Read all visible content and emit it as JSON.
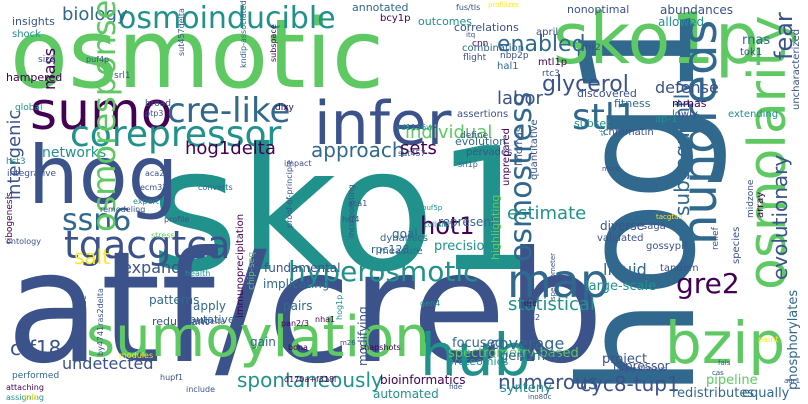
{
  "cloud": {
    "words": [
      {
        "text": "sko1",
        "color": "#21918c"
      },
      {
        "text": "atf/creb",
        "color": "#3b528b"
      },
      {
        "text": "hog1",
        "color": "#31688e"
      },
      {
        "text": "osmotic",
        "color": "#5ec962"
      },
      {
        "text": "sko1p",
        "color": "#5ec962"
      },
      {
        "text": "hog",
        "color": "#3b528b"
      },
      {
        "text": "sumoylation",
        "color": "#5ec962"
      },
      {
        "text": "osmolarity",
        "color": "#5ec962"
      },
      {
        "text": "bzip",
        "color": "#5ec962"
      },
      {
        "text": "hundreds",
        "color": "#31688e"
      },
      {
        "text": "infer",
        "color": "#3b528b"
      },
      {
        "text": "sumo",
        "color": "#440154"
      },
      {
        "text": "hub",
        "color": "#21918c"
      },
      {
        "text": "map",
        "color": "#31688e"
      },
      {
        "text": "tgacgtca",
        "color": "#3b528b"
      },
      {
        "text": "corepressor",
        "color": "#21918c"
      },
      {
        "text": "osmoinducible",
        "color": "#21918c"
      },
      {
        "text": "cre-like",
        "color": "#31688e"
      },
      {
        "text": "stl1",
        "color": "#31688e"
      },
      {
        "text": "ssn6",
        "color": "#31688e"
      },
      {
        "text": "hyperosmotic",
        "color": "#21918c"
      },
      {
        "text": "osmostress",
        "color": "#31688e"
      },
      {
        "text": "gre2",
        "color": "#440154"
      },
      {
        "text": "evolutionary",
        "color": "#3b528b"
      },
      {
        "text": "subsequently",
        "color": "#31688e"
      },
      {
        "text": "fear",
        "color": "#3b528b"
      },
      {
        "text": "glycerol",
        "color": "#3b528b"
      },
      {
        "text": "enabled",
        "color": "#31688e"
      },
      {
        "text": "defense",
        "color": "#3b528b"
      },
      {
        "text": "ctf18",
        "color": "#3b528b"
      },
      {
        "text": "spontaneously",
        "color": "#21918c"
      },
      {
        "text": "numerous",
        "color": "#3b528b"
      },
      {
        "text": "cyc8-tup1",
        "color": "#3b528b"
      },
      {
        "text": "coverage",
        "color": "#31688e"
      },
      {
        "text": "undetected",
        "color": "#3b528b"
      },
      {
        "text": "hot1",
        "color": "#440154"
      },
      {
        "text": "salt",
        "color": "#fde725"
      },
      {
        "text": "expand",
        "color": "#3b528b"
      },
      {
        "text": "labor",
        "color": "#3b528b"
      },
      {
        "text": "biology",
        "color": "#31688e"
      },
      {
        "text": "individual",
        "color": "#5ec962"
      },
      {
        "text": "approach",
        "color": "#31688e"
      },
      {
        "text": "hog1delta",
        "color": "#440154"
      },
      {
        "text": "sets",
        "color": "#440154"
      },
      {
        "text": "estimate",
        "color": "#21918c"
      },
      {
        "text": "statistical",
        "color": "#21918c"
      },
      {
        "text": "intergenic",
        "color": "#3b528b"
      },
      {
        "text": "mass",
        "color": "#440154"
      },
      {
        "text": "networks",
        "color": "#21918c"
      },
      {
        "text": "osmoresponse",
        "color": "#5ec962"
      },
      {
        "text": "liquid",
        "color": "#31688e"
      },
      {
        "text": "pipeline",
        "color": "#5ec962"
      },
      {
        "text": "spectrometry-based",
        "color": "#5ec962"
      },
      {
        "text": "genomes",
        "color": "#31688e"
      },
      {
        "text": "focused",
        "color": "#31688e"
      },
      {
        "text": "project",
        "color": "#3b528b"
      },
      {
        "text": "large-scale",
        "color": "#21918c"
      },
      {
        "text": "phosphorylates",
        "color": "#31688e"
      },
      {
        "text": "repressor",
        "color": "#3b528b"
      },
      {
        "text": "redistributes",
        "color": "#31688e"
      },
      {
        "text": "equally",
        "color": "#31688e"
      },
      {
        "text": "synteny",
        "color": "#21918c"
      },
      {
        "text": "automated",
        "color": "#21918c"
      },
      {
        "text": "bioinformatics",
        "color": "#440154"
      },
      {
        "text": "proteomics",
        "color": "#21918c"
      },
      {
        "text": "modifying",
        "color": "#3b528b"
      },
      {
        "text": "fundamental",
        "color": "#3b528b"
      },
      {
        "text": "implicating",
        "color": "#31688e"
      },
      {
        "text": "immunoprecipitation",
        "color": "#440154"
      },
      {
        "text": "redundant",
        "color": "#3b528b"
      },
      {
        "text": "patterns",
        "color": "#31688e"
      },
      {
        "text": "apply",
        "color": "#31688e"
      },
      {
        "text": "putative",
        "color": "#31688e"
      },
      {
        "text": "pairs",
        "color": "#31688e"
      },
      {
        "text": "gain",
        "color": "#31688e"
      },
      {
        "text": "precision",
        "color": "#21918c"
      },
      {
        "text": "represent",
        "color": "#31688e"
      },
      {
        "text": "diverse",
        "color": "#3b528b"
      },
      {
        "text": "quantitative",
        "color": "#3b528b"
      },
      {
        "text": "highlighting",
        "color": "#5ec962"
      },
      {
        "text": "goal",
        "color": "#31688e"
      },
      {
        "text": "measure",
        "color": "#31688e"
      },
      {
        "text": "dynamics",
        "color": "#31688e"
      },
      {
        "text": "rpc128",
        "color": "#31688e"
      },
      {
        "text": "evolution",
        "color": "#31688e"
      },
      {
        "text": "assertions",
        "color": "#3b528b"
      },
      {
        "text": "define",
        "color": "#3b528b"
      },
      {
        "text": "pervades",
        "color": "#3b528b"
      },
      {
        "text": "unprepared",
        "color": "#440154"
      },
      {
        "text": "lincrnas",
        "color": "#3b528b"
      },
      {
        "text": "fitness",
        "color": "#31688e"
      },
      {
        "text": "discovered",
        "color": "#3b528b"
      },
      {
        "text": "mrnas",
        "color": "#440154"
      },
      {
        "text": "lowly",
        "color": "#3b528b"
      },
      {
        "text": "subset",
        "color": "#21918c"
      },
      {
        "text": "chromatin",
        "color": "#3b528b"
      },
      {
        "text": "ap-1",
        "color": "#21918c"
      },
      {
        "text": "saga",
        "color": "#3b528b"
      },
      {
        "text": "validated",
        "color": "#3b528b"
      },
      {
        "text": "gossypii",
        "color": "#3b528b"
      },
      {
        "text": "tandem",
        "color": "#3b528b"
      },
      {
        "text": "species",
        "color": "#3b528b"
      },
      {
        "text": "relief",
        "color": "#3b528b"
      },
      {
        "text": "midzone",
        "color": "#3b528b"
      },
      {
        "text": "array",
        "color": "#440154"
      },
      {
        "text": "extending",
        "color": "#21918c"
      },
      {
        "text": "tok1",
        "color": "#3b528b"
      },
      {
        "text": "uncharacterized",
        "color": "#3b528b"
      },
      {
        "text": "rnas",
        "color": "#31688e"
      },
      {
        "text": "abundances",
        "color": "#3b528b"
      },
      {
        "text": "allowed",
        "color": "#21918c"
      },
      {
        "text": "nonoptimal",
        "color": "#3b528b"
      },
      {
        "text": "april",
        "color": "#3b528b"
      },
      {
        "text": "rhr2",
        "color": "#3b528b"
      },
      {
        "text": "cnn",
        "color": "#440154"
      },
      {
        "text": "hal1",
        "color": "#31688e"
      },
      {
        "text": "rtc3",
        "color": "#3b528b"
      },
      {
        "text": "mtl1p",
        "color": "#440154"
      },
      {
        "text": "nbp2p",
        "color": "#3b528b"
      },
      {
        "text": "flight",
        "color": "#3b528b"
      },
      {
        "text": "combination",
        "color": "#31688e"
      },
      {
        "text": "correlations",
        "color": "#3b528b"
      },
      {
        "text": "outcomes",
        "color": "#21918c"
      },
      {
        "text": "annotated",
        "color": "#31688e"
      },
      {
        "text": "bcy1p",
        "color": "#440154"
      },
      {
        "text": "insights",
        "color": "#3b528b"
      },
      {
        "text": "shock",
        "color": "#21918c"
      },
      {
        "text": "siz2",
        "color": "#3b528b"
      },
      {
        "text": "puf4p",
        "color": "#3b528b"
      },
      {
        "text": "hampered",
        "color": "#440154"
      },
      {
        "text": "srl1",
        "color": "#3b528b"
      },
      {
        "text": "sut457delta",
        "color": "#3b528b"
      },
      {
        "text": "kndip-associated",
        "color": "#31688e"
      },
      {
        "text": "subspace",
        "color": "#440154"
      },
      {
        "text": "dixy",
        "color": "#440154"
      },
      {
        "text": "broad",
        "color": "#3b528b"
      },
      {
        "text": "global",
        "color": "#21918c"
      },
      {
        "text": "ptp3",
        "color": "#3b528b"
      },
      {
        "text": "yd1156w",
        "color": "#21918c"
      },
      {
        "text": "sut457",
        "color": "#3b528b"
      },
      {
        "text": "srl1p",
        "color": "#31688e"
      },
      {
        "text": "ribogenesis",
        "color": "#440154"
      },
      {
        "text": "hst3",
        "color": "#21918c"
      },
      {
        "text": "integrative",
        "color": "#3b528b"
      },
      {
        "text": "aca2",
        "color": "#3b528b"
      },
      {
        "text": "ecm32",
        "color": "#3b528b"
      },
      {
        "text": "converts",
        "color": "#31688e"
      },
      {
        "text": "expert",
        "color": "#21918c"
      },
      {
        "text": "remodeling",
        "color": "#3b528b"
      },
      {
        "text": "profile",
        "color": "#3b528b"
      },
      {
        "text": "stress",
        "color": "#5ec962"
      },
      {
        "text": "ontology",
        "color": "#3b528b"
      },
      {
        "text": "health",
        "color": "#21918c"
      },
      {
        "text": "chip-seq",
        "color": "#5ec962"
      },
      {
        "text": "aca1",
        "color": "#3b528b"
      },
      {
        "text": "hst4",
        "color": "#3b528b"
      },
      {
        "text": "impact",
        "color": "#3b528b"
      },
      {
        "text": "proof-of-principle",
        "color": "#3b528b"
      },
      {
        "text": "incorporating",
        "color": "#3b528b"
      },
      {
        "text": "collision",
        "color": "#21918c"
      },
      {
        "text": "puf5p",
        "color": "#21918c"
      },
      {
        "text": "scerevisiae",
        "color": "#3b528b"
      },
      {
        "text": "by4741ras2delta",
        "color": "#3b528b"
      },
      {
        "text": "khd1delta",
        "color": "#3b528b"
      },
      {
        "text": "pan2/3",
        "color": "#440154"
      },
      {
        "text": "nha1",
        "color": "#440154"
      },
      {
        "text": "hog1p",
        "color": "#21918c"
      },
      {
        "text": "dak1",
        "color": "#3b528b"
      },
      {
        "text": "gen4",
        "color": "#21918c"
      },
      {
        "text": "drc",
        "color": "#440154"
      },
      {
        "text": "rfa2",
        "color": "#3b528b"
      },
      {
        "text": "performed",
        "color": "#31688e"
      },
      {
        "text": "modules",
        "color": "#fde725"
      },
      {
        "text": "hupf1",
        "color": "#3b528b"
      },
      {
        "text": "d170a+f318l",
        "color": "#440154"
      },
      {
        "text": "bona",
        "color": "#440154"
      },
      {
        "text": "m26",
        "color": "#3b528b"
      },
      {
        "text": "snapshots",
        "color": "#440154"
      },
      {
        "text": "attaching",
        "color": "#440154"
      },
      {
        "text": "assigning",
        "color": "#21918c"
      },
      {
        "text": "stfs",
        "color": "#fde725"
      },
      {
        "text": "include",
        "color": "#3b528b"
      },
      {
        "text": "fide",
        "color": "#3b528b"
      },
      {
        "text": "ino80c",
        "color": "#3b528b"
      },
      {
        "text": "minipathways",
        "color": "#3b528b"
      },
      {
        "text": "fals",
        "color": "#3b528b"
      },
      {
        "text": "aur1",
        "color": "#3b528b"
      },
      {
        "text": "paint",
        "color": "#fde725"
      },
      {
        "text": "tacgtaa",
        "color": "#fde725"
      },
      {
        "text": "sf1",
        "color": "#21918c"
      },
      {
        "text": "fus/tls",
        "color": "#3b528b"
      },
      {
        "text": "profilizer",
        "color": "#fde725"
      },
      {
        "text": "spectrometer",
        "color": "#3b528b"
      },
      {
        "text": "itq",
        "color": "#3b528b"
      },
      {
        "text": "cas",
        "color": "#3b528b"
      },
      {
        "text": "more",
        "color": "#3b528b"
      }
    ]
  }
}
